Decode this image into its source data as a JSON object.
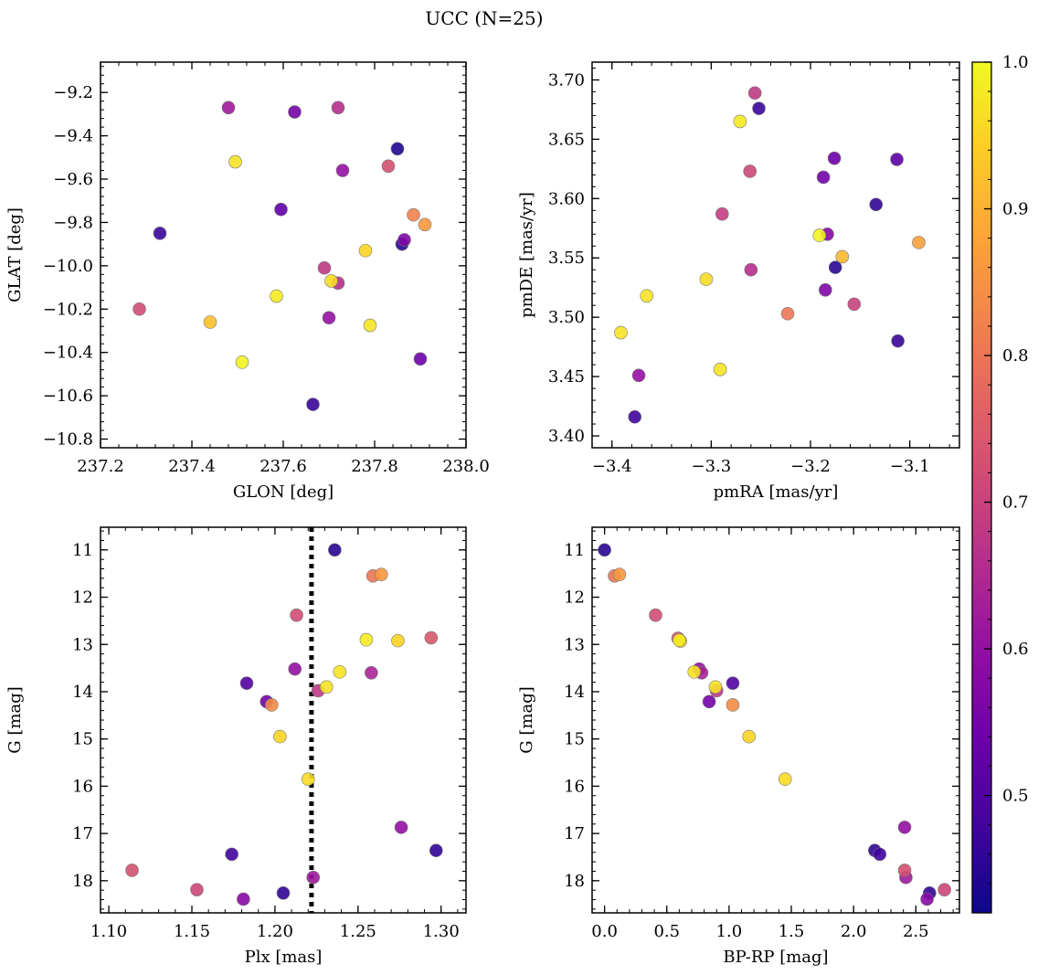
{
  "figure": {
    "title": "UCC (N=25)"
  },
  "colorbar": {
    "min": 0.42,
    "max": 1.0,
    "ticks": [
      0.5,
      0.6,
      0.7,
      0.8,
      0.9,
      1.0
    ],
    "tick_labels": [
      "0.5",
      "0.6",
      "0.7",
      "0.8",
      "0.9",
      "1.0"
    ],
    "colormap": "plasma"
  },
  "chart_data": [
    {
      "id": "glon-glat",
      "type": "scatter",
      "xlabel": "GLON [deg]",
      "ylabel": "GLAT [deg]",
      "xlim": [
        237.2,
        238.0
      ],
      "ylim": [
        -10.84,
        -9.06
      ],
      "xticks": [
        237.2,
        237.4,
        237.6,
        237.8,
        238.0
      ],
      "xtick_labels": [
        "237.2",
        "237.4",
        "237.6",
        "237.8",
        "238.0"
      ],
      "yticks": [
        -10.8,
        -10.6,
        -10.4,
        -10.2,
        -10.0,
        -9.8,
        -9.6,
        -9.4,
        -9.2
      ],
      "ytick_labels": [
        "−10.8",
        "−10.6",
        "−10.4",
        "−10.2",
        "−10.0",
        "−9.8",
        "−9.6",
        "−9.4",
        "−9.2"
      ],
      "points": [
        {
          "x": 237.48,
          "y": -9.27,
          "c": 0.62
        },
        {
          "x": 237.625,
          "y": -9.29,
          "c": 0.55
        },
        {
          "x": 237.72,
          "y": -9.27,
          "c": 0.66
        },
        {
          "x": 237.495,
          "y": -9.52,
          "c": 0.97
        },
        {
          "x": 237.73,
          "y": -9.56,
          "c": 0.6
        },
        {
          "x": 237.83,
          "y": -9.54,
          "c": 0.73
        },
        {
          "x": 237.85,
          "y": -9.46,
          "c": 0.44
        },
        {
          "x": 237.33,
          "y": -9.85,
          "c": 0.47
        },
        {
          "x": 237.595,
          "y": -9.74,
          "c": 0.52
        },
        {
          "x": 237.885,
          "y": -9.765,
          "c": 0.82
        },
        {
          "x": 237.91,
          "y": -9.81,
          "c": 0.86
        },
        {
          "x": 237.78,
          "y": -9.93,
          "c": 0.95
        },
        {
          "x": 237.865,
          "y": -9.88,
          "c": 0.57
        },
        {
          "x": 237.86,
          "y": -9.9,
          "c": 0.45
        },
        {
          "x": 237.69,
          "y": -10.01,
          "c": 0.68
        },
        {
          "x": 237.72,
          "y": -10.08,
          "c": 0.66
        },
        {
          "x": 237.705,
          "y": -10.07,
          "c": 0.96
        },
        {
          "x": 237.585,
          "y": -10.14,
          "c": 0.98
        },
        {
          "x": 237.285,
          "y": -10.2,
          "c": 0.72
        },
        {
          "x": 237.7,
          "y": -10.24,
          "c": 0.6
        },
        {
          "x": 237.44,
          "y": -10.26,
          "c": 0.92
        },
        {
          "x": 237.79,
          "y": -10.275,
          "c": 0.97
        },
        {
          "x": 237.51,
          "y": -10.445,
          "c": 0.99
        },
        {
          "x": 237.9,
          "y": -10.43,
          "c": 0.54
        },
        {
          "x": 237.665,
          "y": -10.64,
          "c": 0.47
        }
      ]
    },
    {
      "id": "pmra-pmde",
      "type": "scatter",
      "xlabel": "pmRA [mas/yr]",
      "ylabel": "pmDE [mas/yr]",
      "xlim": [
        -3.42,
        -3.05
      ],
      "ylim": [
        3.39,
        3.715
      ],
      "xticks": [
        -3.4,
        -3.3,
        -3.2,
        -3.1
      ],
      "xtick_labels": [
        "−3.4",
        "−3.3",
        "−3.2",
        "−3.1"
      ],
      "yticks": [
        3.4,
        3.45,
        3.5,
        3.55,
        3.6,
        3.65,
        3.7
      ],
      "ytick_labels": [
        "3.40",
        "3.45",
        "3.50",
        "3.55",
        "3.60",
        "3.65",
        "3.70"
      ],
      "points": [
        {
          "x": -3.256,
          "y": 3.689,
          "c": 0.68
        },
        {
          "x": -3.252,
          "y": 3.676,
          "c": 0.47
        },
        {
          "x": -3.271,
          "y": 3.665,
          "c": 0.98
        },
        {
          "x": -3.176,
          "y": 3.634,
          "c": 0.54
        },
        {
          "x": -3.113,
          "y": 3.633,
          "c": 0.52
        },
        {
          "x": -3.261,
          "y": 3.623,
          "c": 0.71
        },
        {
          "x": -3.187,
          "y": 3.618,
          "c": 0.55
        },
        {
          "x": -3.134,
          "y": 3.595,
          "c": 0.46
        },
        {
          "x": -3.289,
          "y": 3.587,
          "c": 0.69
        },
        {
          "x": -3.191,
          "y": 3.569,
          "c": 0.99
        },
        {
          "x": -3.183,
          "y": 3.57,
          "c": 0.58
        },
        {
          "x": -3.168,
          "y": 3.551,
          "c": 0.91
        },
        {
          "x": -3.091,
          "y": 3.563,
          "c": 0.87
        },
        {
          "x": -3.175,
          "y": 3.542,
          "c": 0.45
        },
        {
          "x": -3.26,
          "y": 3.54,
          "c": 0.66
        },
        {
          "x": -3.305,
          "y": 3.532,
          "c": 0.96
        },
        {
          "x": -3.365,
          "y": 3.518,
          "c": 0.97
        },
        {
          "x": -3.185,
          "y": 3.523,
          "c": 0.57
        },
        {
          "x": -3.156,
          "y": 3.511,
          "c": 0.7
        },
        {
          "x": -3.223,
          "y": 3.503,
          "c": 0.8
        },
        {
          "x": -3.391,
          "y": 3.487,
          "c": 0.97
        },
        {
          "x": -3.112,
          "y": 3.48,
          "c": 0.47
        },
        {
          "x": -3.291,
          "y": 3.456,
          "c": 0.97
        },
        {
          "x": -3.373,
          "y": 3.451,
          "c": 0.6
        },
        {
          "x": -3.377,
          "y": 3.416,
          "c": 0.48
        }
      ]
    },
    {
      "id": "plx-g",
      "type": "scatter",
      "xlabel": "Plx [mas]",
      "ylabel": "G [mag]",
      "xlim": [
        1.095,
        1.315
      ],
      "ylim": [
        18.68,
        10.52
      ],
      "xticks": [
        1.1,
        1.15,
        1.2,
        1.25,
        1.3
      ],
      "xtick_labels": [
        "1.10",
        "1.15",
        "1.20",
        "1.25",
        "1.30"
      ],
      "yticks": [
        11,
        12,
        13,
        14,
        15,
        16,
        17,
        18
      ],
      "ytick_labels": [
        "11",
        "12",
        "13",
        "14",
        "15",
        "16",
        "17",
        "18"
      ],
      "vline": 1.222,
      "points": [
        {
          "x": 1.236,
          "y": 11.0,
          "c": 0.45
        },
        {
          "x": 1.259,
          "y": 11.55,
          "c": 0.8
        },
        {
          "x": 1.264,
          "y": 11.52,
          "c": 0.86
        },
        {
          "x": 1.213,
          "y": 12.38,
          "c": 0.72
        },
        {
          "x": 1.255,
          "y": 12.9,
          "c": 0.98
        },
        {
          "x": 1.274,
          "y": 12.92,
          "c": 0.95
        },
        {
          "x": 1.294,
          "y": 12.86,
          "c": 0.74
        },
        {
          "x": 1.212,
          "y": 13.52,
          "c": 0.6
        },
        {
          "x": 1.239,
          "y": 13.58,
          "c": 0.97
        },
        {
          "x": 1.258,
          "y": 13.6,
          "c": 0.64
        },
        {
          "x": 1.183,
          "y": 13.82,
          "c": 0.5
        },
        {
          "x": 1.231,
          "y": 13.9,
          "c": 0.97
        },
        {
          "x": 1.226,
          "y": 13.98,
          "c": 0.68
        },
        {
          "x": 1.195,
          "y": 14.21,
          "c": 0.55
        },
        {
          "x": 1.198,
          "y": 14.28,
          "c": 0.84
        },
        {
          "x": 1.203,
          "y": 14.95,
          "c": 0.95
        },
        {
          "x": 1.22,
          "y": 15.85,
          "c": 0.96
        },
        {
          "x": 1.276,
          "y": 16.87,
          "c": 0.6
        },
        {
          "x": 1.297,
          "y": 17.36,
          "c": 0.46
        },
        {
          "x": 1.174,
          "y": 17.44,
          "c": 0.48
        },
        {
          "x": 1.114,
          "y": 17.78,
          "c": 0.73
        },
        {
          "x": 1.223,
          "y": 17.93,
          "c": 0.62
        },
        {
          "x": 1.153,
          "y": 18.19,
          "c": 0.71
        },
        {
          "x": 1.205,
          "y": 18.26,
          "c": 0.46
        },
        {
          "x": 1.181,
          "y": 18.39,
          "c": 0.58
        }
      ]
    },
    {
      "id": "bprp-g",
      "type": "scatter",
      "xlabel": "BP-RP [mag]",
      "ylabel": "G [mag]",
      "xlim": [
        -0.1,
        2.85
      ],
      "ylim": [
        18.68,
        10.52
      ],
      "xticks": [
        0.0,
        0.5,
        1.0,
        1.5,
        2.0,
        2.5
      ],
      "xtick_labels": [
        "0.0",
        "0.5",
        "1.0",
        "1.5",
        "2.0",
        "2.5"
      ],
      "yticks": [
        11,
        12,
        13,
        14,
        15,
        16,
        17,
        18
      ],
      "ytick_labels": [
        "11",
        "12",
        "13",
        "14",
        "15",
        "16",
        "17",
        "18"
      ],
      "points": [
        {
          "x": 0.0,
          "y": 11.0,
          "c": 0.45
        },
        {
          "x": 0.08,
          "y": 11.55,
          "c": 0.8
        },
        {
          "x": 0.12,
          "y": 11.52,
          "c": 0.86
        },
        {
          "x": 0.41,
          "y": 12.38,
          "c": 0.72
        },
        {
          "x": 0.59,
          "y": 12.87,
          "c": 0.74
        },
        {
          "x": 0.6,
          "y": 12.91,
          "c": 0.98
        },
        {
          "x": 0.61,
          "y": 12.93,
          "c": 0.95
        },
        {
          "x": 0.76,
          "y": 13.52,
          "c": 0.6
        },
        {
          "x": 0.72,
          "y": 13.58,
          "c": 0.97
        },
        {
          "x": 0.78,
          "y": 13.6,
          "c": 0.64
        },
        {
          "x": 1.03,
          "y": 13.82,
          "c": 0.5
        },
        {
          "x": 0.89,
          "y": 13.9,
          "c": 0.97
        },
        {
          "x": 0.9,
          "y": 13.98,
          "c": 0.68
        },
        {
          "x": 0.84,
          "y": 14.21,
          "c": 0.55
        },
        {
          "x": 1.03,
          "y": 14.28,
          "c": 0.84
        },
        {
          "x": 1.16,
          "y": 14.95,
          "c": 0.95
        },
        {
          "x": 1.45,
          "y": 15.85,
          "c": 0.96
        },
        {
          "x": 2.41,
          "y": 16.87,
          "c": 0.6
        },
        {
          "x": 2.17,
          "y": 17.36,
          "c": 0.46
        },
        {
          "x": 2.21,
          "y": 17.44,
          "c": 0.48
        },
        {
          "x": 2.41,
          "y": 17.78,
          "c": 0.73
        },
        {
          "x": 2.42,
          "y": 17.93,
          "c": 0.62
        },
        {
          "x": 2.73,
          "y": 18.19,
          "c": 0.71
        },
        {
          "x": 2.61,
          "y": 18.26,
          "c": 0.46
        },
        {
          "x": 2.59,
          "y": 18.39,
          "c": 0.58
        }
      ]
    }
  ]
}
